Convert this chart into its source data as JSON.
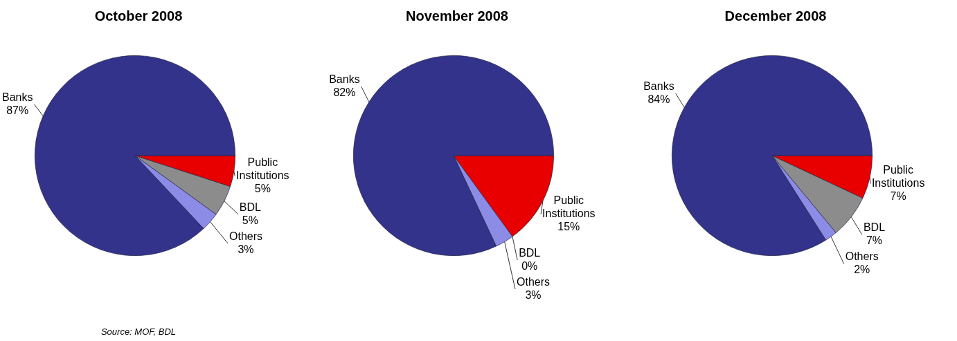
{
  "chart_data": [
    {
      "type": "pie",
      "title": "October 2008",
      "categories": [
        "Public Institutions",
        "BDL",
        "Others",
        "Banks"
      ],
      "values": [
        5,
        5,
        3,
        87
      ],
      "value_labels": [
        "5%",
        "5%",
        "3%",
        "87%"
      ],
      "colors": [
        "#e80000",
        "#8c8c8c",
        "#8c8ce6",
        "#33338c"
      ],
      "annotations": [
        "Source: MOF, BDL"
      ]
    },
    {
      "type": "pie",
      "title": "November 2008",
      "categories": [
        "Public Institutions",
        "BDL",
        "Others",
        "Banks"
      ],
      "values": [
        15,
        0,
        3,
        82
      ],
      "value_labels": [
        "15%",
        "0%",
        "3%",
        "82%"
      ],
      "colors": [
        "#e80000",
        "#8c8c8c",
        "#8c8ce6",
        "#33338c"
      ]
    },
    {
      "type": "pie",
      "title": "December 2008",
      "categories": [
        "Public Institutions",
        "BDL",
        "Others",
        "Banks"
      ],
      "values": [
        7,
        7,
        2,
        84
      ],
      "value_labels": [
        "7%",
        "7%",
        "2%",
        "84%"
      ],
      "colors": [
        "#e80000",
        "#8c8c8c",
        "#8c8ce6",
        "#33338c"
      ]
    }
  ]
}
